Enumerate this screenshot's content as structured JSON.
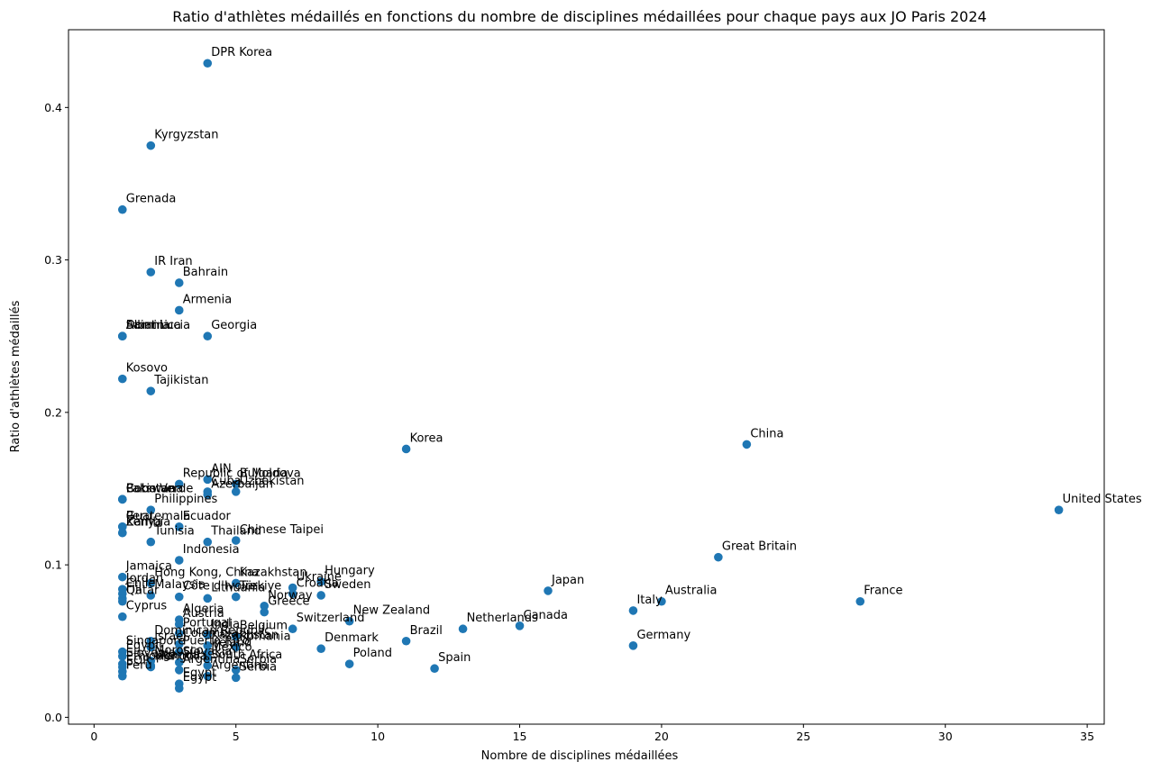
{
  "chart_data": {
    "type": "scatter",
    "title": "Ratio d'athlètes médaillés en fonctions du nombre de disciplines médaillées pour chaque pays aux JO Paris 2024",
    "xlabel": "Nombre de disciplines médaillées",
    "ylabel": "Ratio d'athlètes médaillés",
    "xlim": [
      -0.9,
      35.6
    ],
    "ylim": [
      -0.0045,
      0.451
    ],
    "xticks": [
      0,
      5,
      10,
      15,
      20,
      25,
      30,
      35
    ],
    "yticks": [
      0.0,
      0.1,
      0.2,
      0.3,
      0.4
    ],
    "xtick_labels": [
      "0",
      "5",
      "10",
      "15",
      "20",
      "25",
      "30",
      "35"
    ],
    "ytick_labels": [
      "0.0",
      "0.1",
      "0.2",
      "0.3",
      "0.4"
    ],
    "grid": false,
    "color": "#1f77b4",
    "points": [
      {
        "label": "DPR Korea",
        "x": 4,
        "y": 0.429
      },
      {
        "label": "Kyrgyzstan",
        "x": 2,
        "y": 0.375
      },
      {
        "label": "Grenada",
        "x": 1,
        "y": 0.333
      },
      {
        "label": "IR Iran",
        "x": 2,
        "y": 0.292
      },
      {
        "label": "Bahrain",
        "x": 3,
        "y": 0.285
      },
      {
        "label": "Armenia",
        "x": 3,
        "y": 0.267
      },
      {
        "label": "Albania",
        "x": 1,
        "y": 0.25
      },
      {
        "label": "Dominica",
        "x": 1,
        "y": 0.25
      },
      {
        "label": "Saint Lucia",
        "x": 1,
        "y": 0.25
      },
      {
        "label": "Georgia",
        "x": 4,
        "y": 0.25
      },
      {
        "label": "Kosovo",
        "x": 1,
        "y": 0.222
      },
      {
        "label": "Tajikistan",
        "x": 2,
        "y": 0.214
      },
      {
        "label": "Korea",
        "x": 11,
        "y": 0.176
      },
      {
        "label": "China",
        "x": 23,
        "y": 0.179
      },
      {
        "label": "United States",
        "x": 34,
        "y": 0.136
      },
      {
        "label": "AIN",
        "x": 4,
        "y": 0.156
      },
      {
        "label": "Republic of Moldova",
        "x": 3,
        "y": 0.153
      },
      {
        "label": "Bulgaria",
        "x": 5,
        "y": 0.153
      },
      {
        "label": "Cuba",
        "x": 4,
        "y": 0.148
      },
      {
        "label": "Uzbekistan",
        "x": 5,
        "y": 0.148
      },
      {
        "label": "Azerbaijan",
        "x": 4,
        "y": 0.146
      },
      {
        "label": "Pakistan",
        "x": 1,
        "y": 0.143
      },
      {
        "label": "Botswana",
        "x": 1,
        "y": 0.143
      },
      {
        "label": "Cabo Verde",
        "x": 1,
        "y": 0.143
      },
      {
        "label": "Philippines",
        "x": 2,
        "y": 0.136
      },
      {
        "label": "Guatemala",
        "x": 1,
        "y": 0.125
      },
      {
        "label": "Peru",
        "x": 1,
        "y": 0.125
      },
      {
        "label": "Ecuador",
        "x": 3,
        "y": 0.125
      },
      {
        "label": "Zambia",
        "x": 1,
        "y": 0.121
      },
      {
        "label": "Kenya",
        "x": 1,
        "y": 0.121
      },
      {
        "label": "Tunisia",
        "x": 2,
        "y": 0.115
      },
      {
        "label": "Thailand",
        "x": 4,
        "y": 0.115
      },
      {
        "label": "Chinese Taipei",
        "x": 5,
        "y": 0.116
      },
      {
        "label": "Indonesia",
        "x": 3,
        "y": 0.103
      },
      {
        "label": "Great Britain",
        "x": 22,
        "y": 0.105
      },
      {
        "label": "Jamaica",
        "x": 1,
        "y": 0.092
      },
      {
        "label": "Hong Kong, China",
        "x": 2,
        "y": 0.088
      },
      {
        "label": "Kazakhstan",
        "x": 5,
        "y": 0.088
      },
      {
        "label": "Hungary",
        "x": 8,
        "y": 0.089
      },
      {
        "label": "Ukraine",
        "x": 7,
        "y": 0.085
      },
      {
        "label": "Croatia",
        "x": 7,
        "y": 0.081
      },
      {
        "label": "Sweden",
        "x": 8,
        "y": 0.08
      },
      {
        "label": "Japan",
        "x": 16,
        "y": 0.083
      },
      {
        "label": "Jordan",
        "x": 1,
        "y": 0.084
      },
      {
        "label": "Chile",
        "x": 1,
        "y": 0.081
      },
      {
        "label": "Fiji",
        "x": 1,
        "y": 0.078
      },
      {
        "label": "Qatar",
        "x": 1,
        "y": 0.076
      },
      {
        "label": "Malaysia",
        "x": 2,
        "y": 0.08
      },
      {
        "label": "Côte d'Ivoire",
        "x": 3,
        "y": 0.079
      },
      {
        "label": "Lithuania",
        "x": 4,
        "y": 0.078
      },
      {
        "label": "Türkiye",
        "x": 5,
        "y": 0.079
      },
      {
        "label": "Norway",
        "x": 6,
        "y": 0.073
      },
      {
        "label": "Greece",
        "x": 6,
        "y": 0.069
      },
      {
        "label": "Australia",
        "x": 20,
        "y": 0.076
      },
      {
        "label": "France",
        "x": 27,
        "y": 0.076
      },
      {
        "label": "Italy",
        "x": 19,
        "y": 0.07
      },
      {
        "label": "Cyprus",
        "x": 1,
        "y": 0.066
      },
      {
        "label": "Algeria",
        "x": 3,
        "y": 0.064
      },
      {
        "label": "Austria",
        "x": 3,
        "y": 0.061
      },
      {
        "label": "Switzerland",
        "x": 7,
        "y": 0.058
      },
      {
        "label": "New Zealand",
        "x": 9,
        "y": 0.063
      },
      {
        "label": "Netherlands",
        "x": 13,
        "y": 0.058
      },
      {
        "label": "Canada",
        "x": 15,
        "y": 0.06
      },
      {
        "label": "Portugal",
        "x": 3,
        "y": 0.055
      },
      {
        "label": "India",
        "x": 4,
        "y": 0.054
      },
      {
        "label": "Belgium",
        "x": 5,
        "y": 0.053
      },
      {
        "label": "Dominican Republic",
        "x": 2,
        "y": 0.05
      },
      {
        "label": "Brazil",
        "x": 11,
        "y": 0.05
      },
      {
        "label": "Germany",
        "x": 19,
        "y": 0.047
      },
      {
        "label": "Singapore",
        "x": 1,
        "y": 0.043
      },
      {
        "label": "Israel",
        "x": 2,
        "y": 0.046
      },
      {
        "label": "Colombia",
        "x": 3,
        "y": 0.048
      },
      {
        "label": "Kazakhstan",
        "x": 4,
        "y": 0.047
      },
      {
        "label": "Romania",
        "x": 5,
        "y": 0.046
      },
      {
        "label": "Denmark",
        "x": 8,
        "y": 0.045
      },
      {
        "label": "Puerto Rico",
        "x": 3,
        "y": 0.043
      },
      {
        "label": "Ireland",
        "x": 4,
        "y": 0.042
      },
      {
        "label": "Mexico",
        "x": 4,
        "y": 0.039
      },
      {
        "label": "Egypt",
        "x": 1,
        "y": 0.04
      },
      {
        "label": "Morocco",
        "x": 2,
        "y": 0.037
      },
      {
        "label": "Slovakia",
        "x": 3,
        "y": 0.036
      },
      {
        "label": "Slovenia",
        "x": 1,
        "y": 0.035
      },
      {
        "label": "Ethiopia",
        "x": 1,
        "y": 0.033
      },
      {
        "label": "Uganda",
        "x": 2,
        "y": 0.034
      },
      {
        "label": "Poland",
        "x": 9,
        "y": 0.035
      },
      {
        "label": "South Africa",
        "x": 4,
        "y": 0.034
      },
      {
        "label": "Serbia",
        "x": 5,
        "y": 0.031
      },
      {
        "label": "EOR",
        "x": 1,
        "y": 0.03
      },
      {
        "label": "Argentina",
        "x": 3,
        "y": 0.031
      },
      {
        "label": "Spain",
        "x": 12,
        "y": 0.032
      },
      {
        "label": "Mongolia",
        "x": 2,
        "y": 0.033
      },
      {
        "label": "Egypt",
        "x": 3,
        "y": 0.022
      },
      {
        "label": "Argentina",
        "x": 4,
        "y": 0.027
      },
      {
        "label": "Egypt",
        "x": 3,
        "y": 0.019
      },
      {
        "label": "Serbia",
        "x": 5,
        "y": 0.026
      },
      {
        "label": "Peru",
        "x": 1,
        "y": 0.027
      }
    ]
  }
}
